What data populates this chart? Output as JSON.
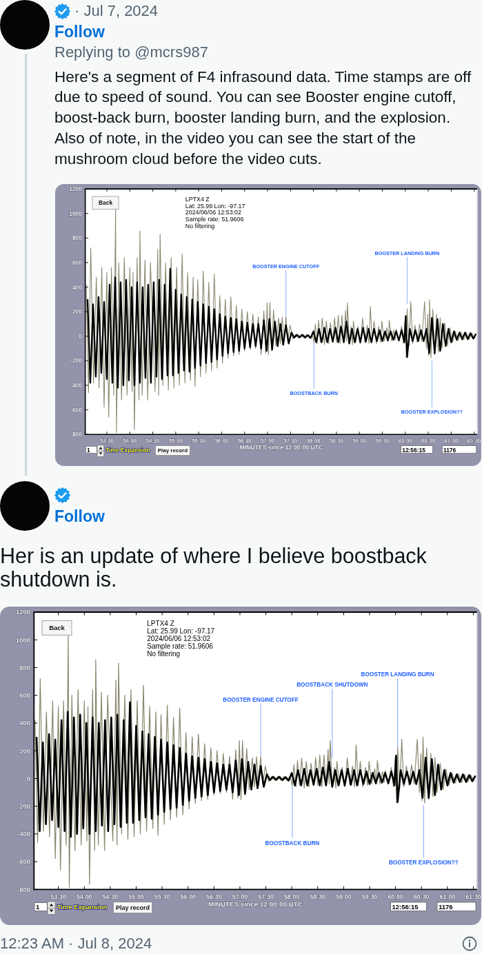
{
  "chart_data": [
    {
      "type": "other",
      "annotations": [
        "· Jul 7, 2024",
        "Follow",
        "Replying to @mcrs987",
        "Here's a segment of F4 infrasound data. Time stamps are off due to speed of sound. You can see Booster engine cutoff, boost-back burn, booster landing burn, and the explosion. Also of note, in the video you can see the start of the mushroom cloud before the video cuts."
      ]
    },
    {
      "type": "line",
      "title": "LPTX4 Z",
      "xlabel": "MINUTES since 12:00:00 UTC",
      "xlim": [
        53.03,
        61.57
      ],
      "ylim": [
        -800,
        1200
      ],
      "xticks": [
        {
          "value": 53.5,
          "label": "53:30"
        },
        {
          "value": 54,
          "label": "54:00"
        },
        {
          "value": 54.5,
          "label": "54:30"
        },
        {
          "value": 55,
          "label": "55:00"
        },
        {
          "value": 55.5,
          "label": "55:30"
        },
        {
          "value": 56,
          "label": "56:00"
        },
        {
          "value": 56.5,
          "label": "56:30"
        },
        {
          "value": 57,
          "label": "57:00"
        },
        {
          "value": 57.5,
          "label": "57:30"
        },
        {
          "value": 58,
          "label": "58:00"
        },
        {
          "value": 58.5,
          "label": "58:30"
        },
        {
          "value": 59,
          "label": "59:00"
        },
        {
          "value": 59.5,
          "label": "59:30"
        },
        {
          "value": 60,
          "label": "60:00"
        },
        {
          "value": 60.5,
          "label": "60:30"
        },
        {
          "value": 61,
          "label": "61:00"
        },
        {
          "value": 61.5,
          "label": "61:30"
        }
      ],
      "yticks": [
        -800,
        -600,
        -400,
        -200,
        0,
        200,
        400,
        600,
        800,
        1000,
        1200
      ],
      "series": [
        {
          "color": "#8a876f",
          "x": [
            53.05,
            53.1,
            53.15,
            53.21,
            53.27,
            53.33,
            53.39,
            53.44,
            53.5,
            53.54,
            53.6,
            53.65,
            53.69,
            53.71,
            53.76,
            53.82,
            53.88,
            53.94,
            54.0,
            54.05,
            54.07,
            54.1,
            54.16,
            54.2,
            54.22,
            54.27,
            54.33,
            54.39,
            54.45,
            54.55,
            54.61,
            54.63,
            54.66,
            54.72,
            54.78,
            54.84,
            54.9,
            54.96,
            55.02,
            55.08,
            55.14,
            55.2,
            55.26,
            55.32,
            55.38,
            55.42,
            55.48,
            55.54,
            55.6,
            55.66,
            55.72,
            55.78,
            55.84,
            55.9,
            55.96,
            56.02,
            56.08,
            56.14,
            56.2,
            56.26,
            56.32,
            56.38,
            56.44,
            56.5,
            56.56,
            56.62,
            56.68,
            56.74,
            56.8,
            56.86,
            56.92,
            56.96,
            56.99,
            57.02,
            57.05,
            57.09,
            57.13,
            57.18,
            57.24,
            57.28,
            57.32,
            57.36,
            57.4,
            57.44,
            57.49,
            57.55,
            57.61,
            57.67,
            57.73,
            57.79,
            57.85,
            57.91,
            57.97,
            58.01,
            58.04,
            58.08,
            58.11,
            58.15,
            58.19,
            58.24,
            58.28,
            58.33,
            58.37,
            58.42,
            58.46,
            58.5,
            58.54,
            58.58,
            58.62,
            58.66,
            58.7,
            58.72,
            58.74,
            58.78,
            58.82,
            58.85,
            58.87,
            58.92,
            58.97,
            59.02,
            59.07,
            59.12,
            59.17,
            59.21,
            59.24,
            59.28,
            59.32,
            59.37,
            59.42,
            59.46,
            59.49,
            59.54,
            59.6,
            59.63,
            59.65,
            59.7,
            59.75,
            59.78,
            59.8,
            59.86,
            59.92,
            59.96,
            60.0,
            60.02,
            60.04,
            60.08,
            60.12,
            60.16,
            60.21,
            60.26,
            60.31,
            60.36,
            60.42,
            60.46,
            60.49,
            60.51,
            60.53,
            60.56,
            60.6,
            60.64,
            60.68,
            60.72,
            60.76,
            60.8,
            60.86,
            60.92,
            60.97,
            61.03,
            61.09,
            61.15,
            61.21,
            61.27,
            61.33,
            61.39,
            61.45,
            61.52
          ],
          "values": [
            420,
            -460,
            720,
            -380,
            480,
            -420,
            560,
            -577,
            520,
            -660,
            560,
            -480,
            1030,
            -785,
            600,
            -520,
            640,
            -480,
            560,
            -450,
            520,
            -763,
            640,
            -520,
            857,
            -480,
            620,
            -520,
            600,
            -450,
            710,
            -480,
            832,
            -400,
            600,
            -440,
            640,
            -420,
            560,
            -400,
            673,
            -380,
            520,
            -360,
            480,
            -410,
            460,
            -330,
            530,
            -300,
            440,
            -280,
            507,
            -260,
            330,
            -220,
            300,
            -180,
            320,
            -160,
            250,
            -150,
            220,
            -120,
            200,
            -110,
            180,
            -100,
            160,
            -150,
            207,
            -140,
            273,
            -152,
            273,
            -120,
            215,
            -80,
            148,
            -60,
            157,
            -50,
            160,
            -40,
            90,
            -20,
            15,
            -15,
            15,
            -12,
            15,
            -15,
            20,
            -50,
            100,
            -60,
            130,
            -50,
            148,
            -70,
            123,
            -60,
            110,
            -50,
            150,
            -50,
            170,
            -60,
            170,
            -50,
            210,
            -40,
            273,
            -60,
            80,
            -70,
            123,
            -50,
            80,
            -60,
            148,
            -50,
            90,
            -60,
            243,
            -50,
            123,
            -60,
            80,
            -50,
            123,
            -40,
            70,
            -40,
            130,
            -40,
            50,
            -30,
            57,
            -40,
            80,
            -60,
            160,
            -177,
            223,
            -80,
            282,
            -60,
            90,
            -50,
            100,
            -40,
            282,
            -100,
            180,
            -160,
            298,
            -177,
            220,
            -150,
            180,
            -130,
            150,
            -100,
            110,
            -80,
            70,
            -50,
            40,
            -35,
            35,
            -30,
            30,
            -25,
            25,
            -20
          ]
        },
        {
          "color": "#000000",
          "x": [
            53.08,
            53.14,
            53.2,
            53.26,
            53.32,
            53.38,
            53.44,
            53.5,
            53.56,
            53.62,
            53.68,
            53.74,
            53.8,
            53.86,
            53.92,
            53.98,
            54.04,
            54.1,
            54.16,
            54.22,
            54.28,
            54.34,
            54.4,
            54.46,
            54.52,
            54.58,
            54.64,
            54.7,
            54.76,
            54.82,
            54.88,
            54.94,
            55.0,
            55.06,
            55.12,
            55.18,
            55.24,
            55.3,
            55.36,
            55.42,
            55.48,
            55.54,
            55.6,
            55.66,
            55.72,
            55.78,
            55.84,
            55.9,
            55.96,
            56.02,
            56.08,
            56.14,
            56.2,
            56.26,
            56.32,
            56.38,
            56.44,
            56.5,
            56.56,
            56.62,
            56.68,
            56.74,
            56.8,
            56.86,
            56.92,
            56.98,
            57.04,
            57.1,
            57.16,
            57.22,
            57.28,
            57.34,
            57.4,
            57.46,
            57.52,
            57.58,
            57.64,
            57.7,
            57.76,
            57.82,
            57.88,
            57.94,
            58.0,
            58.06,
            58.12,
            58.18,
            58.24,
            58.3,
            58.36,
            58.42,
            58.48,
            58.54,
            58.6,
            58.66,
            58.72,
            58.78,
            58.84,
            58.9,
            58.96,
            59.02,
            59.08,
            59.14,
            59.2,
            59.26,
            59.32,
            59.38,
            59.44,
            59.5,
            59.56,
            59.62,
            59.68,
            59.74,
            59.8,
            59.86,
            59.92,
            59.98,
            60.01,
            60.04,
            60.1,
            60.16,
            60.22,
            60.28,
            60.34,
            60.4,
            60.46,
            60.52,
            60.58,
            60.64,
            60.7,
            60.76,
            60.82,
            60.88,
            60.94,
            61.0,
            61.06,
            61.12,
            61.18,
            61.24,
            61.3,
            61.36,
            61.42,
            61.48,
            61.54
          ],
          "values": [
            300,
            -380,
            260,
            -330,
            320,
            -300,
            280,
            -350,
            420,
            -380,
            480,
            -420,
            440,
            -400,
            460,
            -360,
            400,
            -400,
            440,
            -380,
            400,
            -340,
            420,
            -380,
            440,
            -330,
            460,
            -350,
            420,
            -320,
            550,
            -320,
            380,
            -300,
            340,
            -280,
            320,
            -290,
            300,
            -260,
            280,
            -240,
            260,
            -220,
            240,
            -210,
            220,
            -190,
            180,
            -160,
            160,
            -140,
            150,
            -130,
            140,
            -120,
            120,
            -100,
            110,
            -90,
            100,
            -80,
            100,
            -100,
            130,
            -120,
            140,
            -110,
            120,
            -80,
            100,
            -70,
            90,
            -60,
            30,
            -12,
            12,
            -10,
            12,
            -12,
            10,
            -15,
            40,
            -50,
            60,
            -50,
            70,
            -50,
            60,
            -45,
            70,
            -50,
            80,
            -50,
            120,
            -60,
            60,
            -50,
            60,
            -50,
            70,
            -45,
            60,
            -50,
            60,
            -40,
            50,
            -40,
            40,
            -35,
            40,
            -30,
            40,
            -35,
            50,
            -50,
            165,
            -170,
            60,
            -40,
            50,
            -40,
            50,
            -40,
            60,
            -140,
            150,
            -140,
            140,
            -120,
            100,
            -80,
            60,
            -50,
            40,
            -30,
            30,
            -25,
            30,
            -25,
            25,
            -20,
            20
          ]
        }
      ],
      "annotations": [
        "Lat: 25.99 Lon: -97.17",
        "2024/06/06 12:53:02",
        "Sample rate: 51.9606",
        "No filtering",
        "Back",
        "1",
        "Time Expansion",
        "Play record",
        "12:56:15",
        "1176",
        {
          "text": "BOOSTER ENGINE CUTOFF",
          "x": 57.4,
          "y": 160
        },
        {
          "text": "BOOSTER LANDING BURN",
          "x": 60.04,
          "y": 265
        },
        {
          "text": "BOOSTBACK BURN",
          "x": 58.01,
          "y": -50
        },
        {
          "text": "BOOSTER EXPLOSION??",
          "x": 60.58,
          "y": -198
        }
      ]
    },
    {
      "type": "other",
      "annotations": [
        "Follow",
        "Her is an update of where I believe boostback shutdown is."
      ]
    },
    {
      "type": "line",
      "title": "LPTX4 Z",
      "xlabel": "MINUTES since 12:00:00 UTC",
      "xlim": [
        53.03,
        61.57
      ],
      "ylim": [
        -800,
        1200
      ],
      "xticks": [
        {
          "value": 53.5,
          "label": "53:30"
        },
        {
          "value": 54,
          "label": "54:00"
        },
        {
          "value": 54.5,
          "label": "54:30"
        },
        {
          "value": 55,
          "label": "55:00"
        },
        {
          "value": 55.5,
          "label": "55:30"
        },
        {
          "value": 56,
          "label": "56:00"
        },
        {
          "value": 56.5,
          "label": "56:30"
        },
        {
          "value": 57,
          "label": "57:00"
        },
        {
          "value": 57.5,
          "label": "57:30"
        },
        {
          "value": 58,
          "label": "58:00"
        },
        {
          "value": 58.5,
          "label": "58:30"
        },
        {
          "value": 59,
          "label": "59:00"
        },
        {
          "value": 59.5,
          "label": "59:30"
        },
        {
          "value": 60,
          "label": "60:00"
        },
        {
          "value": 60.5,
          "label": "60:30"
        },
        {
          "value": 61,
          "label": "61:00"
        },
        {
          "value": 61.5,
          "label": "61:30"
        }
      ],
      "yticks": [
        -800,
        -600,
        -400,
        -200,
        0,
        200,
        400,
        600,
        800,
        1000,
        1200
      ],
      "series": [
        {
          "color": "#8a876f",
          "x": [
            53.05,
            53.1,
            53.15,
            53.21,
            53.27,
            53.33,
            53.39,
            53.44,
            53.5,
            53.54,
            53.6,
            53.65,
            53.69,
            53.71,
            53.76,
            53.82,
            53.88,
            53.94,
            54.0,
            54.05,
            54.07,
            54.1,
            54.16,
            54.2,
            54.22,
            54.27,
            54.33,
            54.39,
            54.45,
            54.55,
            54.61,
            54.63,
            54.66,
            54.72,
            54.78,
            54.84,
            54.9,
            54.96,
            55.02,
            55.08,
            55.14,
            55.2,
            55.26,
            55.32,
            55.38,
            55.42,
            55.48,
            55.54,
            55.6,
            55.66,
            55.72,
            55.78,
            55.84,
            55.9,
            55.96,
            56.02,
            56.08,
            56.14,
            56.2,
            56.26,
            56.32,
            56.38,
            56.44,
            56.5,
            56.56,
            56.62,
            56.68,
            56.74,
            56.8,
            56.86,
            56.92,
            56.96,
            56.99,
            57.02,
            57.05,
            57.09,
            57.13,
            57.18,
            57.24,
            57.28,
            57.32,
            57.36,
            57.4,
            57.44,
            57.49,
            57.55,
            57.61,
            57.67,
            57.73,
            57.79,
            57.85,
            57.91,
            57.97,
            58.01,
            58.04,
            58.08,
            58.11,
            58.15,
            58.19,
            58.24,
            58.28,
            58.33,
            58.37,
            58.42,
            58.46,
            58.5,
            58.54,
            58.58,
            58.62,
            58.66,
            58.7,
            58.72,
            58.74,
            58.78,
            58.82,
            58.85,
            58.87,
            58.92,
            58.97,
            59.02,
            59.07,
            59.12,
            59.17,
            59.21,
            59.24,
            59.28,
            59.32,
            59.37,
            59.42,
            59.46,
            59.49,
            59.54,
            59.6,
            59.63,
            59.65,
            59.7,
            59.75,
            59.78,
            59.8,
            59.86,
            59.92,
            59.96,
            60.0,
            60.02,
            60.04,
            60.08,
            60.12,
            60.16,
            60.21,
            60.26,
            60.31,
            60.36,
            60.42,
            60.46,
            60.49,
            60.51,
            60.53,
            60.56,
            60.6,
            60.64,
            60.68,
            60.72,
            60.76,
            60.8,
            60.86,
            60.92,
            60.97,
            61.03,
            61.09,
            61.15,
            61.21,
            61.27,
            61.33,
            61.39,
            61.45,
            61.52
          ],
          "values": [
            420,
            -460,
            720,
            -380,
            480,
            -420,
            560,
            -577,
            520,
            -660,
            560,
            -480,
            1030,
            -785,
            600,
            -520,
            640,
            -480,
            560,
            -450,
            520,
            -763,
            640,
            -520,
            857,
            -480,
            620,
            -520,
            600,
            -450,
            710,
            -480,
            832,
            -400,
            600,
            -440,
            640,
            -420,
            560,
            -400,
            673,
            -380,
            520,
            -360,
            480,
            -410,
            460,
            -330,
            530,
            -300,
            440,
            -280,
            507,
            -260,
            330,
            -220,
            300,
            -180,
            320,
            -160,
            250,
            -150,
            220,
            -120,
            200,
            -110,
            180,
            -100,
            160,
            -150,
            207,
            -140,
            273,
            -152,
            273,
            -120,
            215,
            -80,
            148,
            -60,
            157,
            -50,
            160,
            -40,
            90,
            -20,
            15,
            -15,
            15,
            -12,
            15,
            -15,
            20,
            -50,
            100,
            -60,
            130,
            -50,
            148,
            -70,
            123,
            -60,
            110,
            -50,
            150,
            -50,
            170,
            -60,
            170,
            -50,
            210,
            -40,
            273,
            -60,
            80,
            -70,
            123,
            -50,
            80,
            -60,
            148,
            -50,
            90,
            -60,
            243,
            -50,
            123,
            -60,
            80,
            -50,
            123,
            -40,
            70,
            -40,
            130,
            -40,
            50,
            -30,
            57,
            -40,
            80,
            -60,
            160,
            -177,
            223,
            -80,
            282,
            -60,
            90,
            -50,
            100,
            -40,
            282,
            -100,
            180,
            -160,
            298,
            -177,
            220,
            -150,
            180,
            -130,
            150,
            -100,
            110,
            -80,
            70,
            -50,
            40,
            -35,
            35,
            -30,
            30,
            -25,
            25,
            -20
          ]
        },
        {
          "color": "#000000",
          "x": [
            53.08,
            53.14,
            53.2,
            53.26,
            53.32,
            53.38,
            53.44,
            53.5,
            53.56,
            53.62,
            53.68,
            53.74,
            53.8,
            53.86,
            53.92,
            53.98,
            54.04,
            54.1,
            54.16,
            54.22,
            54.28,
            54.34,
            54.4,
            54.46,
            54.52,
            54.58,
            54.64,
            54.7,
            54.76,
            54.82,
            54.88,
            54.94,
            55.0,
            55.06,
            55.12,
            55.18,
            55.24,
            55.3,
            55.36,
            55.42,
            55.48,
            55.54,
            55.6,
            55.66,
            55.72,
            55.78,
            55.84,
            55.9,
            55.96,
            56.02,
            56.08,
            56.14,
            56.2,
            56.26,
            56.32,
            56.38,
            56.44,
            56.5,
            56.56,
            56.62,
            56.68,
            56.74,
            56.8,
            56.86,
            56.92,
            56.98,
            57.04,
            57.1,
            57.16,
            57.22,
            57.28,
            57.34,
            57.4,
            57.46,
            57.52,
            57.58,
            57.64,
            57.7,
            57.76,
            57.82,
            57.88,
            57.94,
            58.0,
            58.06,
            58.12,
            58.18,
            58.24,
            58.3,
            58.36,
            58.42,
            58.48,
            58.54,
            58.6,
            58.66,
            58.72,
            58.78,
            58.84,
            58.9,
            58.96,
            59.02,
            59.08,
            59.14,
            59.2,
            59.26,
            59.32,
            59.38,
            59.44,
            59.5,
            59.56,
            59.62,
            59.68,
            59.74,
            59.8,
            59.86,
            59.92,
            59.98,
            60.01,
            60.04,
            60.1,
            60.16,
            60.22,
            60.28,
            60.34,
            60.4,
            60.46,
            60.52,
            60.58,
            60.64,
            60.7,
            60.76,
            60.82,
            60.88,
            60.94,
            61.0,
            61.06,
            61.12,
            61.18,
            61.24,
            61.3,
            61.36,
            61.42,
            61.48,
            61.54
          ],
          "values": [
            300,
            -380,
            260,
            -330,
            320,
            -300,
            280,
            -350,
            420,
            -380,
            480,
            -420,
            440,
            -400,
            460,
            -360,
            400,
            -400,
            440,
            -380,
            400,
            -340,
            420,
            -380,
            440,
            -330,
            460,
            -350,
            420,
            -320,
            550,
            -320,
            380,
            -300,
            340,
            -280,
            320,
            -290,
            300,
            -260,
            280,
            -240,
            260,
            -220,
            240,
            -210,
            220,
            -190,
            180,
            -160,
            160,
            -140,
            150,
            -130,
            140,
            -120,
            120,
            -100,
            110,
            -90,
            100,
            -80,
            100,
            -100,
            130,
            -120,
            140,
            -110,
            120,
            -80,
            100,
            -70,
            90,
            -60,
            30,
            -12,
            12,
            -10,
            12,
            -12,
            10,
            -15,
            40,
            -50,
            60,
            -50,
            70,
            -50,
            60,
            -45,
            70,
            -50,
            80,
            -50,
            120,
            -60,
            60,
            -50,
            60,
            -50,
            70,
            -45,
            60,
            -50,
            60,
            -40,
            50,
            -40,
            40,
            -35,
            40,
            -30,
            40,
            -35,
            50,
            -50,
            165,
            -170,
            60,
            -40,
            50,
            -40,
            50,
            -40,
            60,
            -140,
            150,
            -140,
            140,
            -120,
            100,
            -80,
            60,
            -50,
            40,
            -30,
            30,
            -25,
            30,
            -25,
            25,
            -20,
            20
          ]
        }
      ],
      "annotations": [
        "Lat: 25.99 Lon: -97.17",
        "2024/06/06 12:53:02",
        "Sample rate: 51.9606",
        "No filtering",
        "Back",
        "1",
        "Time Expansion",
        "Play record",
        "12:56:15",
        "1176",
        {
          "text": "BOOSTER ENGINE CUTOFF",
          "x": 57.4,
          "y": 160
        },
        {
          "text": "BOOSTBACK SHUTDOWN",
          "x": 58.78,
          "y": 148
        },
        {
          "text": "BOOSTER LANDING BURN",
          "x": 60.04,
          "y": 223
        },
        {
          "text": "BOOSTBACK BURN",
          "x": 58.01,
          "y": -50
        },
        {
          "text": "BOOSTER EXPLOSION??",
          "x": 60.54,
          "y": -192
        }
      ]
    },
    {
      "type": "other",
      "annotations": [
        "12:23 AM · Jul 8, 2024"
      ]
    }
  ]
}
